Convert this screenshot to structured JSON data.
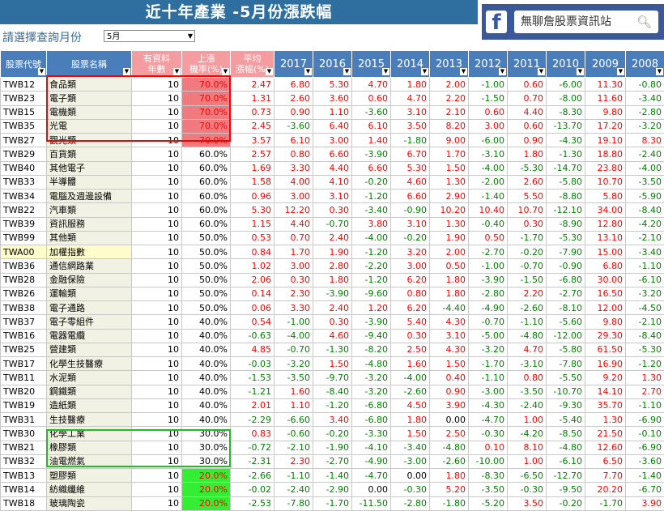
{
  "banner": {
    "title": "近十年產業 -5月份漲跌幅",
    "bg": "#2f6f9f"
  },
  "fb_widget": {
    "search_text": "無聊詹股票資訊站",
    "logo_letter": "f",
    "icon": "search-icon"
  },
  "month_prompt": "請選擇查詢月份",
  "month_select": {
    "value": "5月"
  },
  "columns": {
    "code": "股票代號",
    "name": "股票名稱",
    "years_a": "有資料",
    "years_b": "年數",
    "rate_a": "上漲",
    "rate_b": "機率(%)",
    "avg_a": "平均",
    "avg_b": "漲幅(%)",
    "years": [
      "2017",
      "2016",
      "2015",
      "2014",
      "2013",
      "2012",
      "2011",
      "2010",
      "2009",
      "2008"
    ]
  },
  "colors": {
    "header": "#4a7ebb",
    "header_soft": "#f49ca0",
    "hl_red": "#f07a7e",
    "hl_green": "#33ee33",
    "up": "#ff0000",
    "down": "#008000"
  },
  "rows": [
    {
      "code": "TWB12",
      "name": "食品類",
      "n": "10",
      "rate": "70.0%",
      "avg": "2.47",
      "v": [
        "6.80",
        "5.30",
        "4.70",
        "1.80",
        "2.00",
        "-1.00",
        "0.60",
        "-6.00",
        "11.30",
        "-0.80"
      ],
      "hl": "red"
    },
    {
      "code": "TWB23",
      "name": "電子類",
      "n": "10",
      "rate": "70.0%",
      "avg": "1.31",
      "v": [
        "2.60",
        "3.60",
        "0.60",
        "4.70",
        "2.20",
        "-1.50",
        "0.70",
        "-8.00",
        "11.60",
        "-3.40"
      ],
      "hl": "red"
    },
    {
      "code": "TWB15",
      "name": "電機類",
      "n": "10",
      "rate": "70.0%",
      "avg": "0.73",
      "v": [
        "0.90",
        "1.10",
        "-3.60",
        "3.10",
        "2.10",
        "0.60",
        "4.40",
        "-8.30",
        "9.80",
        "-2.80"
      ],
      "hl": "red"
    },
    {
      "code": "TWB35",
      "name": "光電",
      "n": "10",
      "rate": "70.0%",
      "avg": "2.45",
      "v": [
        "-3.60",
        "6.40",
        "6.10",
        "3.50",
        "8.20",
        "3.00",
        "0.60",
        "-13.70",
        "17.20",
        "-3.20"
      ],
      "hl": "red"
    },
    {
      "code": "TWB27",
      "name": "觀光類",
      "n": "10",
      "rate": "70.0%",
      "avg": "3.57",
      "v": [
        "6.10",
        "3.00",
        "1.40",
        "-1.80",
        "9.00",
        "-6.00",
        "0.90",
        "-4.30",
        "19.10",
        "8.30"
      ],
      "hl": "red"
    },
    {
      "code": "TWB29",
      "name": "百貨類",
      "n": "10",
      "rate": "60.0%",
      "avg": "2.57",
      "v": [
        "0.80",
        "6.60",
        "-3.90",
        "6.70",
        "1.70",
        "-3.10",
        "1.80",
        "-1.30",
        "18.80",
        "-2.40"
      ],
      "hl": ""
    },
    {
      "code": "TWB40",
      "name": "其他電子",
      "n": "10",
      "rate": "60.0%",
      "avg": "1.69",
      "v": [
        "3.30",
        "4.40",
        "6.60",
        "5.30",
        "1.50",
        "-4.00",
        "-5.30",
        "-14.70",
        "23.80",
        "-4.00"
      ],
      "hl": ""
    },
    {
      "code": "TWB33",
      "name": "半導體",
      "n": "10",
      "rate": "60.0%",
      "avg": "1.58",
      "v": [
        "4.00",
        "4.10",
        "-0.20",
        "4.60",
        "1.30",
        "-2.00",
        "2.60",
        "-5.80",
        "10.70",
        "-3.50"
      ],
      "hl": ""
    },
    {
      "code": "TWB34",
      "name": "電腦及週邊設備",
      "n": "10",
      "rate": "60.0%",
      "avg": "0.96",
      "v": [
        "3.00",
        "3.10",
        "-1.20",
        "6.60",
        "2.90",
        "-1.40",
        "5.50",
        "-8.80",
        "5.80",
        "-5.90"
      ],
      "hl": ""
    },
    {
      "code": "TWB22",
      "name": "汽車類",
      "n": "10",
      "rate": "60.0%",
      "avg": "5.30",
      "v": [
        "12.20",
        "0.30",
        "-3.40",
        "-0.90",
        "10.20",
        "10.40",
        "10.70",
        "-12.10",
        "34.00",
        "-8.40"
      ],
      "hl": ""
    },
    {
      "code": "TWB39",
      "name": "資訊服務",
      "n": "10",
      "rate": "60.0%",
      "avg": "1.15",
      "v": [
        "4.40",
        "-0.70",
        "3.80",
        "3.10",
        "1.30",
        "-0.40",
        "0.30",
        "-8.90",
        "12.80",
        "-4.20"
      ],
      "hl": ""
    },
    {
      "code": "TWB99",
      "name": "其他類",
      "n": "10",
      "rate": "50.0%",
      "avg": "0.53",
      "v": [
        "0.70",
        "2.40",
        "-4.00",
        "-0.20",
        "1.90",
        "0.50",
        "-1.70",
        "-5.30",
        "13.10",
        "-2.10"
      ],
      "hl": ""
    },
    {
      "code": "TWA00",
      "name": "加權指數",
      "n": "10",
      "rate": "50.0%",
      "avg": "0.84",
      "v": [
        "1.70",
        "1.90",
        "-1.20",
        "3.20",
        "2.00",
        "-2.70",
        "-0.20",
        "-7.90",
        "15.00",
        "-3.40"
      ],
      "hl": "",
      "idx": true
    },
    {
      "code": "TWB36",
      "name": "通信網路業",
      "n": "10",
      "rate": "50.0%",
      "avg": "1.02",
      "v": [
        "3.00",
        "2.80",
        "-2.20",
        "3.00",
        "0.50",
        "-1.00",
        "-0.70",
        "-0.90",
        "6.80",
        "-1.10"
      ],
      "hl": ""
    },
    {
      "code": "TWB28",
      "name": "金融保險",
      "n": "10",
      "rate": "50.0%",
      "avg": "2.06",
      "v": [
        "0.30",
        "1.80",
        "-1.20",
        "6.20",
        "1.80",
        "-3.90",
        "-1.50",
        "-6.80",
        "30.00",
        "-6.10"
      ],
      "hl": ""
    },
    {
      "code": "TWB26",
      "name": "運輸類",
      "n": "10",
      "rate": "50.0%",
      "avg": "0.14",
      "v": [
        "2.30",
        "-3.90",
        "-9.60",
        "0.80",
        "1.80",
        "-2.80",
        "2.20",
        "-2.70",
        "16.50",
        "-3.20"
      ],
      "hl": ""
    },
    {
      "code": "TWB38",
      "name": "電子通路",
      "n": "10",
      "rate": "50.0%",
      "avg": "0.06",
      "v": [
        "3.30",
        "2.40",
        "1.20",
        "6.20",
        "-4.40",
        "-4.90",
        "-2.60",
        "-8.10",
        "12.00",
        "-4.50"
      ],
      "hl": ""
    },
    {
      "code": "TWB37",
      "name": "電子零組件",
      "n": "10",
      "rate": "40.0%",
      "avg": "0.54",
      "v": [
        "-1.00",
        "0.30",
        "-3.90",
        "5.40",
        "4.30",
        "-0.70",
        "-1.10",
        "-5.60",
        "9.80",
        "-2.10"
      ],
      "hl": ""
    },
    {
      "code": "TWB16",
      "name": "電器電纜",
      "n": "10",
      "rate": "40.0%",
      "avg": "-0.63",
      "v": [
        "-4.00",
        "4.60",
        "-9.40",
        "0.30",
        "3.10",
        "-5.00",
        "-4.80",
        "-12.00",
        "29.30",
        "-8.40"
      ],
      "hl": ""
    },
    {
      "code": "TWB25",
      "name": "營建類",
      "n": "10",
      "rate": "40.0%",
      "avg": "4.85",
      "v": [
        "-0.70",
        "-1.30",
        "-8.20",
        "2.50",
        "4.30",
        "-3.20",
        "4.70",
        "-5.80",
        "61.50",
        "-5.30"
      ],
      "hl": ""
    },
    {
      "code": "TWB17",
      "name": "化學生技醫療",
      "n": "10",
      "rate": "40.0%",
      "avg": "-0.03",
      "v": [
        "-3.20",
        "1.50",
        "-4.80",
        "1.60",
        "1.50",
        "-1.70",
        "-3.10",
        "-7.80",
        "16.90",
        "-1.20"
      ],
      "hl": ""
    },
    {
      "code": "TWB11",
      "name": "水泥類",
      "n": "10",
      "rate": "40.0%",
      "avg": "-1.53",
      "v": [
        "-3.50",
        "-9.70",
        "-3.20",
        "-4.00",
        "0.40",
        "-1.10",
        "0.80",
        "-5.50",
        "9.20",
        "1.30"
      ],
      "hl": ""
    },
    {
      "code": "TWB20",
      "name": "鋼鐵類",
      "n": "10",
      "rate": "40.0%",
      "avg": "-1.21",
      "v": [
        "1.60",
        "-8.40",
        "-3.20",
        "-2.60",
        "0.90",
        "-3.00",
        "-3.50",
        "-10.70",
        "14.10",
        "2.70"
      ],
      "hl": ""
    },
    {
      "code": "TWB19",
      "name": "造紙類",
      "n": "10",
      "rate": "40.0%",
      "avg": "2.01",
      "v": [
        "1.10",
        "-1.20",
        "-6.80",
        "4.50",
        "3.90",
        "-4.30",
        "-2.40",
        "-9.30",
        "35.70",
        "-1.10"
      ],
      "hl": ""
    },
    {
      "code": "TWB31",
      "name": "生技醫療",
      "n": "10",
      "rate": "40.0%",
      "avg": "-2.29",
      "v": [
        "-6.60",
        "3.40",
        "-6.80",
        "1.80",
        "0.00",
        "-4.70",
        "1.00",
        "-5.40",
        "1.30",
        "-6.90"
      ],
      "hl": ""
    },
    {
      "code": "TWB30",
      "name": "化學工業",
      "n": "10",
      "rate": "30.0%",
      "avg": "0.83",
      "v": [
        "-0.60",
        "-0.20",
        "-3.30",
        "1.50",
        "2.50",
        "-0.30",
        "-4.20",
        "-8.50",
        "21.50",
        "-0.10"
      ],
      "hl": ""
    },
    {
      "code": "TWB21",
      "name": "橡膠類",
      "n": "10",
      "rate": "30.0%",
      "avg": "-0.72",
      "v": [
        "-2.10",
        "-1.90",
        "-4.10",
        "-3.40",
        "-4.80",
        "0.10",
        "8.10",
        "-4.80",
        "12.60",
        "-6.90"
      ],
      "hl": ""
    },
    {
      "code": "TWB32",
      "name": "油電燃氣",
      "n": "10",
      "rate": "30.0%",
      "avg": "-2.31",
      "v": [
        "2.30",
        "-2.70",
        "-4.90",
        "-3.00",
        "-2.60",
        "-10.00",
        "1.00",
        "-6.10",
        "6.50",
        "-3.60"
      ],
      "hl": ""
    },
    {
      "code": "TWB13",
      "name": "塑膠類",
      "n": "10",
      "rate": "20.0%",
      "avg": "-2.66",
      "v": [
        "-1.10",
        "-1.40",
        "-4.70",
        "0.00",
        "1.80",
        "-8.30",
        "-6.50",
        "-12.70",
        "7.70",
        "-1.40"
      ],
      "hl": "green"
    },
    {
      "code": "TWB14",
      "name": "紡織纖維",
      "n": "10",
      "rate": "20.0%",
      "avg": "-0.02",
      "v": [
        "-2.40",
        "-2.90",
        "0.00",
        "-0.30",
        "5.20",
        "-3.50",
        "-0.30",
        "-9.50",
        "20.20",
        "-6.70"
      ],
      "hl": "green"
    },
    {
      "code": "TWB18",
      "name": "玻璃陶瓷",
      "n": "10",
      "rate": "20.0%",
      "avg": "-2.53",
      "v": [
        "-7.80",
        "-1.70",
        "-11.50",
        "-2.80",
        "-1.80",
        "-5.20",
        "3.50",
        "-0.20",
        "-1.70",
        "3.90"
      ],
      "hl": "green"
    }
  ]
}
